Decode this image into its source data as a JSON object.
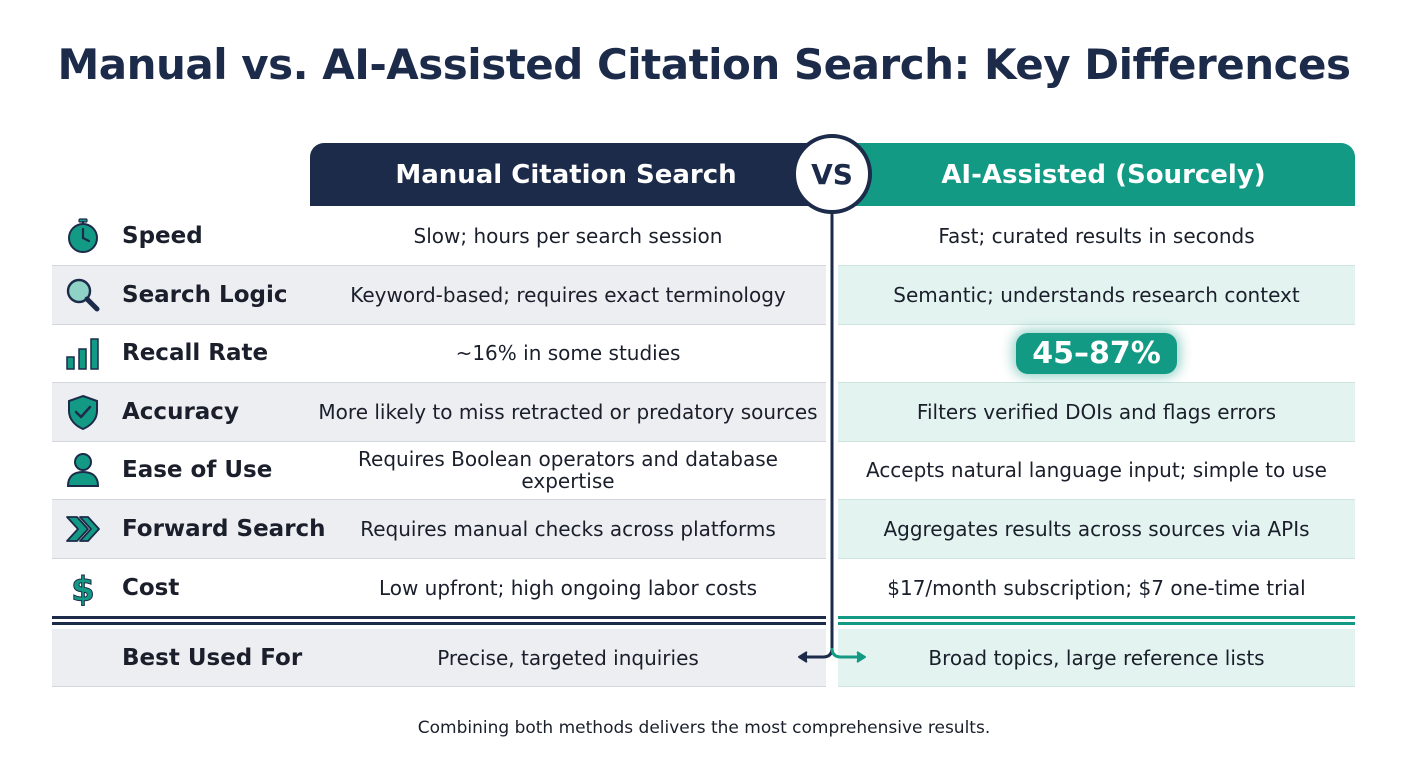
{
  "title": "Manual vs. AI-Assisted Citation Search: Key Differences",
  "header": {
    "manual": "Manual Citation Search",
    "vs": "VS",
    "ai": "AI-Assisted (Sourcely)"
  },
  "colors": {
    "navy": "#1c2b4a",
    "teal": "#139a84"
  },
  "rows": [
    {
      "icon": "stopwatch-icon",
      "label": "Speed",
      "manual": "Slow; hours per search session",
      "ai": "Fast; curated results in seconds"
    },
    {
      "icon": "magnifier-icon",
      "label": "Search Logic",
      "manual": "Keyword-based; requires exact terminology",
      "ai": "Semantic; understands research context"
    },
    {
      "icon": "bar-chart-icon",
      "label": "Recall Rate",
      "manual": "~16% in some studies",
      "ai": "45–87%"
    },
    {
      "icon": "shield-check-icon",
      "label": "Accuracy",
      "manual": "More likely to miss retracted or predatory sources",
      "ai": "Filters verified DOIs and flags errors"
    },
    {
      "icon": "person-icon",
      "label": "Ease of Use",
      "manual": "Requires Boolean operators and database expertise",
      "ai": "Accepts natural language input; simple to use"
    },
    {
      "icon": "double-chevron-right-icon",
      "label": "Forward Search",
      "manual": "Requires manual checks across platforms",
      "ai": "Aggregates results across sources via APIs"
    },
    {
      "icon": "dollar-icon",
      "label": "Cost",
      "manual": "Low upfront; high ongoing labor costs",
      "ai": "$17/month subscription; $7 one-time trial"
    }
  ],
  "best_used_for": {
    "label": "Best Used For",
    "manual": "Precise, targeted inquiries",
    "ai": "Broad topics, large reference lists"
  },
  "footer": "Combining both methods delivers the most comprehensive results."
}
